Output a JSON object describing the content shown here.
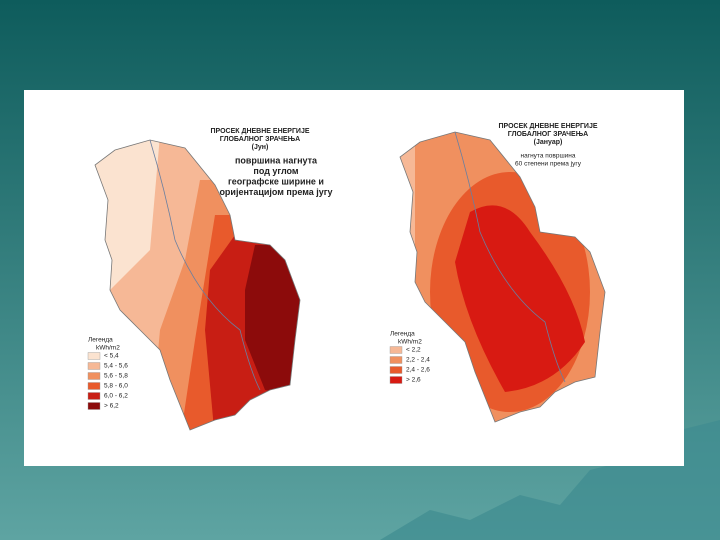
{
  "maps": [
    {
      "title_lines": [
        "ПРОСЕК ДНЕВНЕ ЕНЕРГИЈЕ",
        "ГЛОБАЛНОГ ЗРАЧЕЊА",
        "(Јун)"
      ],
      "subtitle_lines": [
        "површина нагнута",
        "под углом",
        "географске ширине и",
        "оријентацијом према југу"
      ],
      "legend": {
        "title": "Легенда",
        "unit": "kWh/m2",
        "items": [
          {
            "label": "< 5,4",
            "color": "#fbe3d0"
          },
          {
            "label": "5,4 - 5,6",
            "color": "#f6b896"
          },
          {
            "label": "5,6 - 5,8",
            "color": "#f0905f"
          },
          {
            "label": "5,8 - 6,0",
            "color": "#e85a2c"
          },
          {
            "label": "6,0 - 6,2",
            "color": "#c81e14"
          },
          {
            "label": "> 6,2",
            "color": "#8c0b0b"
          }
        ]
      }
    },
    {
      "title_lines": [
        "ПРОСЕК ДНЕВНЕ ЕНЕРГИЈЕ",
        "ГЛОБАЛНОГ ЗРАЧЕЊА",
        "(Јануар)"
      ],
      "subtitle_lines": [
        "нагнута површина",
        "60 степени према југу"
      ],
      "legend": {
        "title": "Легенда",
        "unit": "kWh/m2",
        "items": [
          {
            "label": "< 2,2",
            "color": "#f6b896"
          },
          {
            "label": "2,2 - 2,4",
            "color": "#f0905f"
          },
          {
            "label": "2,4 - 2,6",
            "color": "#e85a2c"
          },
          {
            "label": "> 2,6",
            "color": "#d81a12"
          }
        ]
      }
    }
  ]
}
